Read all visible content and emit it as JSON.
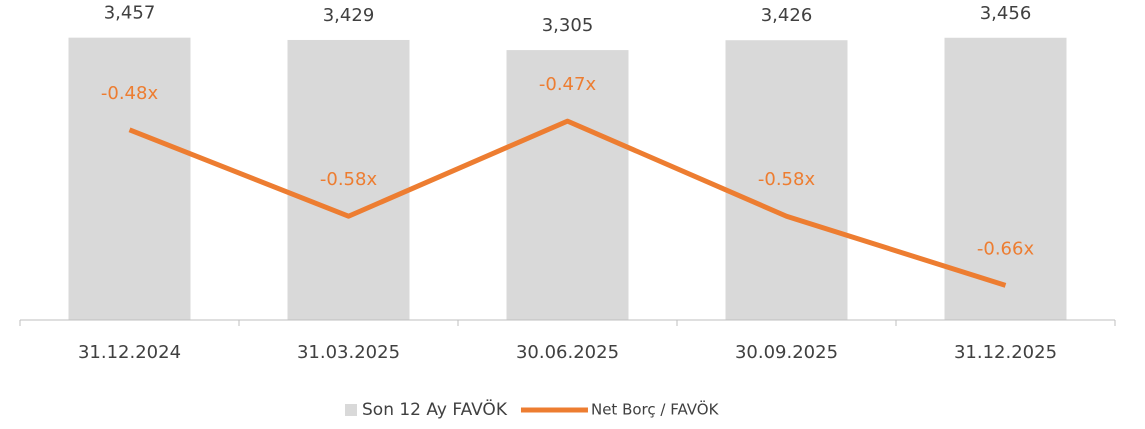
{
  "chart_data": {
    "type": "bar_line",
    "categories": [
      "31.12.2024",
      "31.03.2025",
      "30.06.2025",
      "30.09.2025",
      "31.12.2025"
    ],
    "series": [
      {
        "name": "Son 12 Ay FAVÖK",
        "type": "bar",
        "color": "#d9d9d9",
        "values": [
          3457,
          3429,
          3305,
          3426,
          3456
        ],
        "value_labels": [
          "3,457",
          "3,429",
          "3,305",
          "3,426",
          "3,456"
        ]
      },
      {
        "name": "Net Borç / FAVÖK",
        "type": "line",
        "axis": "y2",
        "color": "#ed7d31",
        "values": [
          -0.48,
          -0.58,
          -0.47,
          -0.58,
          -0.66
        ],
        "value_labels": [
          "-0.48x",
          "-0.58x",
          "-0.47x",
          "-0.58x",
          "-0.66x"
        ]
      }
    ],
    "ylim": [
      0,
      3600
    ],
    "y2lim": [
      -0.7,
      -0.36
    ],
    "grid": false,
    "legend": "bottom"
  }
}
